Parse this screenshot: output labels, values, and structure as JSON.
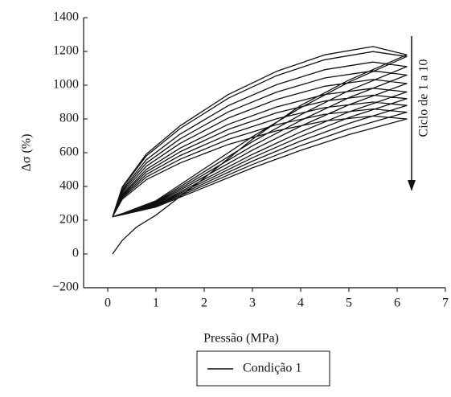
{
  "chart_data": {
    "type": "line",
    "xlabel": "Pressão (MPa)",
    "ylabel": "Δσ (%)",
    "annotation": "Ciclo de 1 a 10",
    "xlim": [
      -0.5,
      7
    ],
    "xticks": [
      0,
      1,
      2,
      3,
      4,
      5,
      6,
      7
    ],
    "ylim": [
      -200,
      1400
    ],
    "yticks": [
      {
        "value": -200,
        "label": "−200"
      },
      0,
      200,
      400,
      600,
      800,
      1000,
      1200,
      1400
    ],
    "legend": "bottom",
    "x": [
      0.1,
      0.3,
      0.6,
      1,
      2,
      3,
      4,
      5,
      6.2,
      5.5,
      4.5,
      3.5,
      2.5,
      1.5,
      0.8,
      0.3,
      0.1,
      0.3,
      1,
      2,
      3,
      4,
      5,
      6.2,
      5.5,
      4.5,
      3.5,
      2.5,
      1.5,
      0.8,
      0.3,
      0.1,
      0.3,
      1,
      2,
      3,
      4,
      5,
      6.2,
      5.5,
      4.5,
      3.5,
      2.5,
      1.5,
      0.8,
      0.3,
      0.1,
      0.3,
      1,
      2,
      3,
      4,
      5,
      6.2,
      5.5,
      4.5,
      3.5,
      2.5,
      1.5,
      0.8,
      0.3,
      0.1,
      0.3,
      1,
      2,
      3,
      4,
      5,
      6.2,
      5.5,
      4.5,
      3.5,
      2.5,
      1.5,
      0.8,
      0.3,
      0.1,
      0.3,
      1,
      2,
      3,
      4,
      5,
      6.2,
      5.5,
      4.5,
      3.5,
      2.5,
      1.5,
      0.8,
      0.3,
      0.1,
      0.3,
      1,
      2,
      3,
      4,
      5,
      6.2,
      5.5,
      4.5,
      3.5,
      2.5,
      1.5,
      0.8,
      0.3,
      0.1,
      0.3,
      1,
      2,
      3,
      4,
      5,
      6.2,
      5.5,
      4.5,
      3.5,
      2.5,
      1.5,
      0.8,
      0.3,
      0.1,
      0.3,
      1,
      2,
      3,
      4,
      5,
      6.2,
      5.5,
      4.5,
      3.5,
      2.5,
      1.5,
      0.8,
      0.3,
      0.1,
      0.3,
      1,
      2,
      3,
      4,
      5,
      6.2,
      5.5,
      4.5,
      3.5,
      2.5,
      1.5,
      0.8,
      0.3,
      0.1
    ],
    "series": [
      {
        "name": "Condição 1",
        "color": "#111111",
        "values": [
          0,
          80,
          160,
          230,
          450,
          680,
          880,
          1030,
          1180,
          1229,
          1180,
          1082,
          945,
          759,
          592,
          396,
          220,
          239,
          315,
          505,
          695,
          866,
          1018,
          1170,
          1199,
          1151,
          1056,
          923,
          743,
          581,
          391,
          220,
          238,
          309,
          487,
          665,
          825,
          968,
          1110,
          1137,
          1092,
          1003,
          879,
          710,
          558,
          380,
          220,
          237,
          304,
          472,
          640,
          791,
          926,
          1060,
          1085,
          1043,
          959,
          842,
          682,
          539,
          371,
          220,
          236,
          299,
          457,
          615,
          757,
          884,
          1010,
          1034,
          994,
          915,
          805,
          655,
          520,
          362,
          220,
          235,
          294,
          442,
          590,
          723,
          842,
          960,
          982,
          945,
          871,
          768,
          627,
          501,
          353,
          220,
          234,
          290,
          430,
          570,
          696,
          808,
          920,
          941,
          906,
          836,
          738,
          605,
          486,
          346,
          220,
          233,
          286,
          418,
          550,
          669,
          774,
          880,
          900,
          867,
          801,
          708,
          583,
          471,
          339,
          220,
          232,
          282,
          406,
          530,
          642,
          741,
          840,
          859,
          828,
          766,
          679,
          561,
          456,
          332,
          220,
          232,
          278,
          394,
          510,
          614,
          707,
          800,
          817,
          788,
          730,
          649,
          539,
          440,
          324,
          220
        ]
      }
    ]
  }
}
